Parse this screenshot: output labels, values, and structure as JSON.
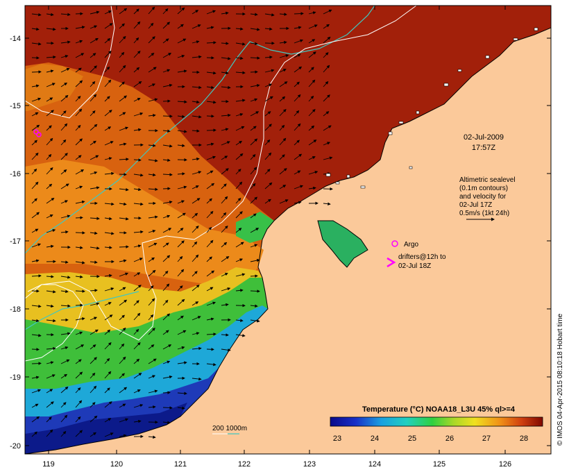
{
  "map": {
    "date": "02-Jul-2009",
    "time": "17:57Z",
    "legend_lines": [
      "Altimetric sealevel",
      "(0.1m contours)",
      "and velocity for",
      "02-Jul 17Z",
      "0.5m/s (1kt 24h)"
    ],
    "argo_label": "Argo",
    "drifter_lines": [
      "drifters@12h to",
      "02-Jul 18Z"
    ],
    "isobath_label": "200  1000m",
    "colorbar_title": "Temperature (°C) NOAA18_L3U 45% ql>=4",
    "colorbar_ticks": [
      "23",
      "24",
      "25",
      "26",
      "27",
      "28"
    ],
    "credit": "© IMOS 04-Apr-2015 08:10:18 Hobart time",
    "lon_ticks": [
      "119",
      "120",
      "121",
      "122",
      "123",
      "124",
      "125",
      "126"
    ],
    "lat_ticks": [
      "-14",
      "-15",
      "-16",
      "-17",
      "-18",
      "-19",
      "-20"
    ],
    "colors": {
      "land": "#fbc99a",
      "sst_warm": "#9a1a00",
      "sst_orange": "#e27a12",
      "sst_yellow": "#d8d020",
      "sst_green": "#3cc43a",
      "sst_cyan": "#1fb0d8",
      "sst_blue": "#0c1a9a",
      "isobath_1000": "#40c8c0",
      "contour": "#ffffff",
      "argo": "#ff00ff"
    }
  }
}
